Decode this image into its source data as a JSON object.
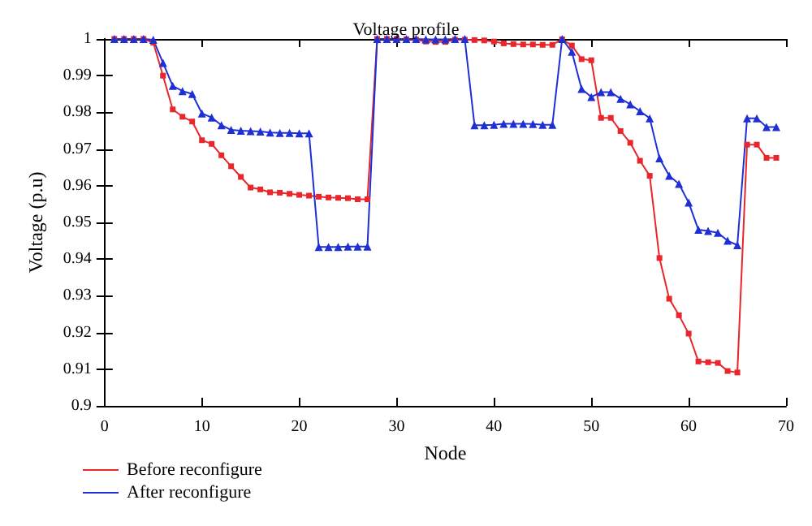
{
  "chart_data": {
    "type": "line",
    "title": "Voltage profile",
    "xlabel": "Node",
    "ylabel": "Voltage (p.u)",
    "x": [
      1,
      2,
      3,
      4,
      5,
      6,
      7,
      8,
      9,
      10,
      11,
      12,
      13,
      14,
      15,
      16,
      17,
      18,
      19,
      20,
      21,
      22,
      23,
      24,
      25,
      26,
      27,
      28,
      29,
      30,
      31,
      32,
      33,
      34,
      35,
      36,
      37,
      38,
      39,
      40,
      41,
      42,
      43,
      44,
      45,
      46,
      47,
      48,
      49,
      50,
      51,
      52,
      53,
      54,
      55,
      56,
      57,
      58,
      59,
      60,
      61,
      62,
      63,
      64,
      65,
      66,
      67,
      68,
      69
    ],
    "series": [
      {
        "name": "Before reconfigure",
        "color": "#e8262b",
        "marker": "square",
        "values": [
          1,
          1,
          1,
          1,
          0.999,
          0.99,
          0.9808,
          0.9788,
          0.9775,
          0.9724,
          0.9714,
          0.9683,
          0.9653,
          0.9624,
          0.9595,
          0.959,
          0.9582,
          0.9581,
          0.9578,
          0.9575,
          0.9573,
          0.957,
          0.9568,
          0.9567,
          0.9566,
          0.9563,
          0.9563,
          1,
          1,
          1,
          0.9999,
          0.9998,
          0.9993,
          0.9992,
          0.9992,
          0.9998,
          0.9998,
          0.9997,
          0.9996,
          0.9993,
          0.9988,
          0.9986,
          0.9985,
          0.9985,
          0.9984,
          0.9984,
          0.9999,
          0.9982,
          0.9945,
          0.9942,
          0.9785,
          0.9785,
          0.9749,
          0.9717,
          0.9668,
          0.9627,
          0.9403,
          0.9292,
          0.9247,
          0.9197,
          0.9121,
          0.9119,
          0.9117,
          0.9095,
          0.9091,
          0.9712,
          0.9712,
          0.9676,
          0.9676
        ]
      },
      {
        "name": "After reconfigure",
        "color": "#1f2fd6",
        "marker": "triangle",
        "values": [
          1,
          1,
          1,
          1,
          0.9998,
          0.9935,
          0.9872,
          0.9858,
          0.985,
          0.9797,
          0.9786,
          0.9765,
          0.9752,
          0.975,
          0.9749,
          0.9748,
          0.9745,
          0.9744,
          0.9744,
          0.9743,
          0.9743,
          0.9433,
          0.9433,
          0.9433,
          0.9434,
          0.9434,
          0.9434,
          1,
          1,
          1,
          1,
          1,
          0.9999,
          0.9999,
          0.9999,
          1,
          1,
          0.9765,
          0.9765,
          0.9766,
          0.9769,
          0.9769,
          0.9769,
          0.9768,
          0.9766,
          0.9766,
          1,
          0.9965,
          0.9864,
          0.9842,
          0.9855,
          0.9855,
          0.9837,
          0.9822,
          0.9803,
          0.9784,
          0.9675,
          0.9627,
          0.9605,
          0.9554,
          0.948,
          0.9477,
          0.9472,
          0.945,
          0.9438,
          0.9784,
          0.9784,
          0.976,
          0.976
        ]
      }
    ],
    "xlim": [
      0,
      70
    ],
    "xticks": [
      0,
      10,
      20,
      30,
      40,
      50,
      60,
      70
    ],
    "ylim": [
      0.9,
      1
    ],
    "yticks": [
      0.9,
      0.91,
      0.92,
      0.93,
      0.94,
      0.95,
      0.96,
      0.97,
      0.98,
      0.99,
      1
    ],
    "grid": false,
    "legend": "bottom left",
    "line_style": "solid"
  }
}
